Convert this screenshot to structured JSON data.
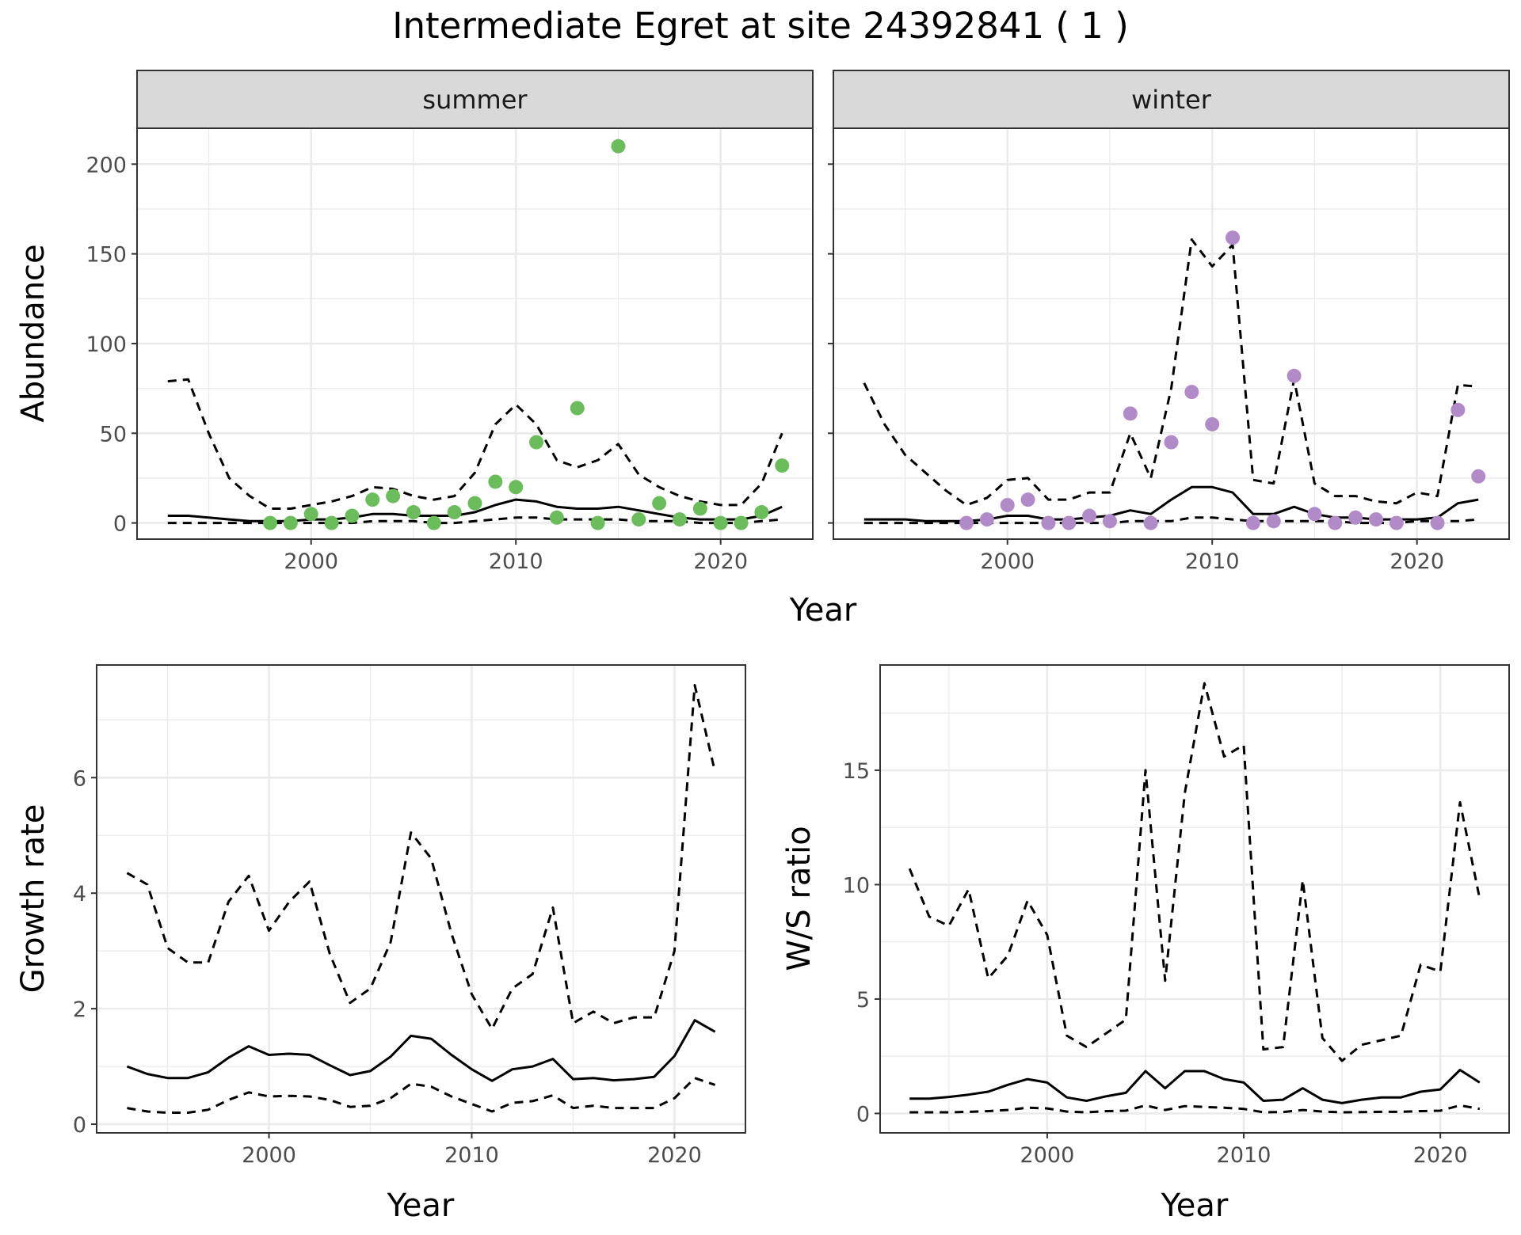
{
  "title": "Intermediate Egret at site 24392841 ( 1 )",
  "colors": {
    "summer_points": "#6ABD5A",
    "winter_points": "#B08BC8",
    "lines": "#000000",
    "strip_bg": "#D9D9D9",
    "grid": "#EBEBEB"
  },
  "chart_data": [
    {
      "type": "line",
      "panel": "summer",
      "strip": "summer",
      "xlabel": "Year",
      "ylabel": "Abundance",
      "xlim": [
        1991.5,
        2024.5
      ],
      "ylim": [
        -9,
        220
      ],
      "xticks": [
        2000,
        2010,
        2020
      ],
      "yticks": [
        0,
        50,
        100,
        150,
        200
      ],
      "grid": true,
      "line_years": [
        1993,
        1994,
        1995,
        1996,
        1997,
        1998,
        1999,
        2000,
        2001,
        2002,
        2003,
        2004,
        2005,
        2006,
        2007,
        2008,
        2009,
        2010,
        2011,
        2012,
        2013,
        2014,
        2015,
        2016,
        2017,
        2018,
        2019,
        2020,
        2021,
        2022,
        2023
      ],
      "series": [
        {
          "role": "estimate",
          "style": "solid",
          "values": [
            4,
            4,
            3,
            2,
            1,
            1,
            1,
            2,
            2,
            3,
            5,
            5,
            4,
            4,
            4,
            6,
            10,
            13,
            12,
            9,
            8,
            8,
            9,
            7,
            5,
            3,
            2,
            2,
            2,
            4,
            9
          ]
        },
        {
          "role": "upper",
          "style": "dashed",
          "values": [
            79,
            80,
            50,
            25,
            15,
            8,
            8,
            10,
            12,
            15,
            20,
            19,
            15,
            13,
            15,
            28,
            55,
            66,
            55,
            35,
            31,
            35,
            44,
            27,
            20,
            15,
            12,
            10,
            10,
            22,
            50
          ]
        },
        {
          "role": "lower",
          "style": "dashed",
          "values": [
            0,
            0,
            0,
            0,
            0,
            0,
            0,
            0,
            0,
            0,
            1,
            1,
            1,
            0,
            0,
            1,
            2,
            3,
            3,
            2,
            2,
            2,
            2,
            1,
            1,
            1,
            0,
            0,
            0,
            1,
            2
          ]
        }
      ],
      "points": {
        "color": "#6ABD5A",
        "x": [
          1998,
          1999,
          2000,
          2001,
          2002,
          2003,
          2004,
          2005,
          2006,
          2007,
          2008,
          2009,
          2010,
          2011,
          2012,
          2013,
          2014,
          2015,
          2016,
          2017,
          2018,
          2019,
          2020,
          2021,
          2022,
          2023
        ],
        "y": [
          0,
          0,
          5,
          0,
          4,
          13,
          15,
          6,
          0,
          6,
          11,
          23,
          20,
          45,
          3,
          64,
          0,
          210,
          2,
          11,
          2,
          8,
          0,
          0,
          6,
          32
        ]
      }
    },
    {
      "type": "line",
      "panel": "winter",
      "strip": "winter",
      "xlabel": "Year",
      "ylabel": "Abundance",
      "xlim": [
        1991.5,
        2024.5
      ],
      "ylim": [
        -9,
        220
      ],
      "xticks": [
        2000,
        2010,
        2020
      ],
      "yticks": [
        0,
        50,
        100,
        150,
        200
      ],
      "grid": true,
      "line_years": [
        1993,
        1994,
        1995,
        1996,
        1997,
        1998,
        1999,
        2000,
        2001,
        2002,
        2003,
        2004,
        2005,
        2006,
        2007,
        2008,
        2009,
        2010,
        2011,
        2012,
        2013,
        2014,
        2015,
        2016,
        2017,
        2018,
        2019,
        2020,
        2021,
        2022,
        2023
      ],
      "series": [
        {
          "role": "estimate",
          "style": "solid",
          "values": [
            2,
            2,
            2,
            1,
            1,
            1,
            2,
            4,
            4,
            2,
            2,
            3,
            4,
            7,
            5,
            13,
            20,
            20,
            17,
            5,
            5,
            9,
            5,
            3,
            3,
            2,
            2,
            2,
            3,
            11,
            13
          ]
        },
        {
          "role": "upper",
          "style": "dashed",
          "values": [
            78,
            55,
            38,
            28,
            18,
            10,
            14,
            24,
            25,
            13,
            13,
            17,
            17,
            50,
            25,
            75,
            158,
            143,
            155,
            24,
            22,
            80,
            22,
            15,
            15,
            12,
            11,
            17,
            15,
            77,
            76
          ]
        },
        {
          "role": "lower",
          "style": "dashed",
          "values": [
            0,
            0,
            0,
            0,
            0,
            0,
            0,
            0,
            0,
            0,
            0,
            0,
            0,
            1,
            1,
            1,
            3,
            3,
            2,
            1,
            1,
            1,
            1,
            1,
            0,
            0,
            0,
            1,
            1,
            1,
            2
          ]
        }
      ],
      "points": {
        "color": "#B08BC8",
        "x": [
          1998,
          1999,
          2000,
          2001,
          2002,
          2003,
          2004,
          2005,
          2006,
          2007,
          2008,
          2009,
          2010,
          2011,
          2012,
          2013,
          2014,
          2015,
          2016,
          2017,
          2018,
          2019,
          2021,
          2022,
          2023
        ],
        "y": [
          0,
          2,
          10,
          13,
          0,
          0,
          4,
          1,
          61,
          0,
          45,
          73,
          55,
          159,
          0,
          1,
          82,
          5,
          0,
          3,
          2,
          0,
          0,
          63,
          26
        ]
      }
    },
    {
      "type": "line",
      "panel": "growth",
      "xlabel": "Year",
      "ylabel": "Growth rate",
      "xlim": [
        1991.5,
        2023.5
      ],
      "ylim": [
        -0.15,
        7.95
      ],
      "xticks": [
        2000,
        2010,
        2020
      ],
      "yticks": [
        0,
        2,
        4,
        6
      ],
      "grid": true,
      "line_years": [
        1993,
        1994,
        1995,
        1996,
        1997,
        1998,
        1999,
        2000,
        2001,
        2002,
        2003,
        2004,
        2005,
        2006,
        2007,
        2008,
        2009,
        2010,
        2011,
        2012,
        2013,
        2014,
        2015,
        2016,
        2017,
        2018,
        2019,
        2020,
        2021,
        2022
      ],
      "series": [
        {
          "role": "estimate",
          "style": "solid",
          "values": [
            1.0,
            0.87,
            0.8,
            0.8,
            0.9,
            1.15,
            1.35,
            1.2,
            1.22,
            1.2,
            1.02,
            0.85,
            0.92,
            1.17,
            1.53,
            1.48,
            1.2,
            0.95,
            0.75,
            0.95,
            1.0,
            1.13,
            0.78,
            0.8,
            0.76,
            0.78,
            0.82,
            1.18,
            1.8,
            1.6
          ]
        },
        {
          "role": "upper",
          "style": "dashed",
          "values": [
            4.35,
            4.15,
            3.05,
            2.8,
            2.8,
            3.85,
            4.3,
            3.35,
            3.85,
            4.2,
            2.95,
            2.1,
            2.35,
            3.15,
            5.05,
            4.6,
            3.3,
            2.25,
            1.65,
            2.35,
            2.6,
            3.75,
            1.75,
            1.95,
            1.75,
            1.85,
            1.85,
            3.0,
            7.6,
            6.1
          ]
        },
        {
          "role": "lower",
          "style": "dashed",
          "values": [
            0.28,
            0.22,
            0.2,
            0.2,
            0.25,
            0.42,
            0.55,
            0.48,
            0.49,
            0.48,
            0.42,
            0.3,
            0.32,
            0.45,
            0.7,
            0.65,
            0.48,
            0.35,
            0.22,
            0.37,
            0.4,
            0.5,
            0.28,
            0.32,
            0.28,
            0.28,
            0.28,
            0.45,
            0.8,
            0.68
          ]
        }
      ]
    },
    {
      "type": "line",
      "panel": "ws-ratio",
      "xlabel": "Year",
      "ylabel": "W/S ratio",
      "xlim": [
        1991.5,
        2023.5
      ],
      "ylim": [
        -0.85,
        19.6
      ],
      "xticks": [
        2000,
        2010,
        2020
      ],
      "yticks": [
        0,
        5,
        10,
        15
      ],
      "grid": true,
      "line_years": [
        1993,
        1994,
        1995,
        1996,
        1997,
        1998,
        1999,
        2000,
        2001,
        2002,
        2003,
        2004,
        2005,
        2006,
        2007,
        2008,
        2009,
        2010,
        2011,
        2012,
        2013,
        2014,
        2015,
        2016,
        2017,
        2018,
        2019,
        2020,
        2021,
        2022
      ],
      "series": [
        {
          "role": "estimate",
          "style": "solid",
          "values": [
            0.65,
            0.65,
            0.72,
            0.82,
            0.95,
            1.25,
            1.5,
            1.35,
            0.7,
            0.55,
            0.75,
            0.9,
            1.85,
            1.1,
            1.85,
            1.85,
            1.5,
            1.35,
            0.55,
            0.6,
            1.1,
            0.6,
            0.45,
            0.6,
            0.7,
            0.7,
            0.95,
            1.05,
            1.9,
            1.35
          ]
        },
        {
          "role": "upper",
          "style": "dashed",
          "values": [
            10.7,
            8.6,
            8.2,
            9.8,
            5.9,
            6.9,
            9.3,
            7.8,
            3.4,
            2.9,
            3.5,
            4.1,
            15.0,
            5.8,
            14.0,
            18.8,
            15.6,
            16.1,
            2.8,
            2.9,
            10.2,
            3.3,
            2.3,
            3.0,
            3.2,
            3.4,
            6.5,
            6.2,
            13.6,
            9.4
          ]
        },
        {
          "role": "lower",
          "style": "dashed",
          "values": [
            0.05,
            0.05,
            0.05,
            0.07,
            0.1,
            0.15,
            0.25,
            0.22,
            0.08,
            0.05,
            0.1,
            0.12,
            0.35,
            0.15,
            0.32,
            0.28,
            0.25,
            0.2,
            0.05,
            0.06,
            0.15,
            0.08,
            0.05,
            0.06,
            0.07,
            0.07,
            0.1,
            0.12,
            0.35,
            0.2
          ]
        }
      ]
    }
  ]
}
